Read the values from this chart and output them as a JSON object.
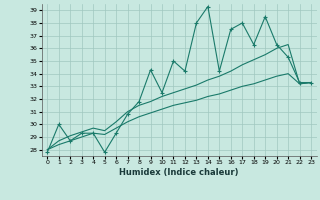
{
  "xlabel": "Humidex (Indice chaleur)",
  "bg_color": "#c8e8e0",
  "grid_color": "#a0c8c0",
  "line_color": "#1a7a6a",
  "x_data": [
    0,
    1,
    2,
    3,
    4,
    5,
    6,
    7,
    8,
    9,
    10,
    11,
    12,
    13,
    14,
    15,
    16,
    17,
    18,
    19,
    20,
    21,
    22,
    23
  ],
  "y_main": [
    27.8,
    30.0,
    28.7,
    29.3,
    29.3,
    27.8,
    29.3,
    30.8,
    31.8,
    34.3,
    32.5,
    35.0,
    34.2,
    38.0,
    39.3,
    34.2,
    37.5,
    38.0,
    36.3,
    38.5,
    36.3,
    35.3,
    33.3,
    33.3
  ],
  "y_line1": [
    28.0,
    28.7,
    29.1,
    29.4,
    29.7,
    29.5,
    30.2,
    31.0,
    31.5,
    31.8,
    32.2,
    32.5,
    32.8,
    33.1,
    33.5,
    33.8,
    34.2,
    34.7,
    35.1,
    35.5,
    36.0,
    36.3,
    33.2,
    33.3
  ],
  "y_line2": [
    28.0,
    28.4,
    28.7,
    29.0,
    29.3,
    29.2,
    29.7,
    30.2,
    30.6,
    30.9,
    31.2,
    31.5,
    31.7,
    31.9,
    32.2,
    32.4,
    32.7,
    33.0,
    33.2,
    33.5,
    33.8,
    34.0,
    33.2,
    33.3
  ],
  "xlim": [
    -0.5,
    23.5
  ],
  "ylim": [
    27.5,
    39.5
  ],
  "yticks": [
    28,
    29,
    30,
    31,
    32,
    33,
    34,
    35,
    36,
    37,
    38,
    39
  ],
  "xticks": [
    0,
    1,
    2,
    3,
    4,
    5,
    6,
    7,
    8,
    9,
    10,
    11,
    12,
    13,
    14,
    15,
    16,
    17,
    18,
    19,
    20,
    21,
    22,
    23
  ]
}
